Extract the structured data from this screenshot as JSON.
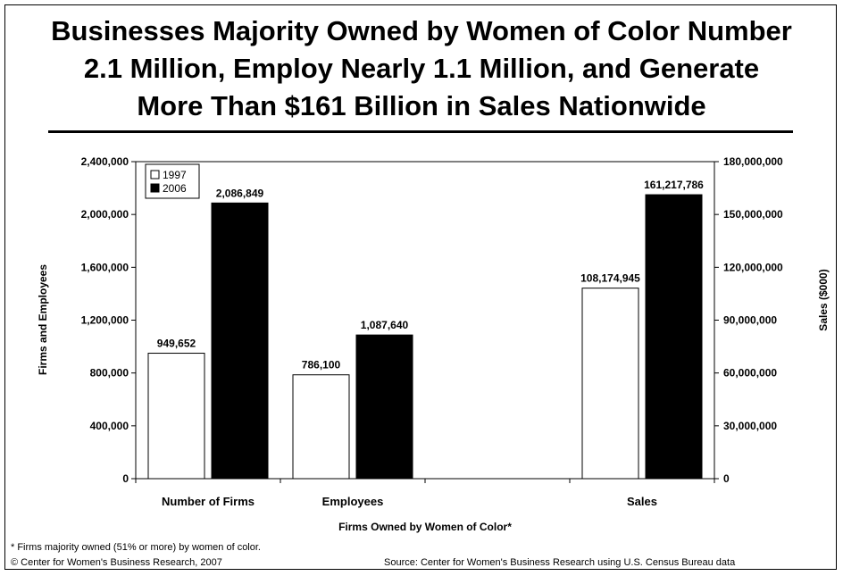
{
  "title_lines": [
    "Businesses Majority Owned by Women of Color Number",
    "2.1 Million, Employ Nearly 1.1 Million, and Generate",
    "More Than $161 Billion in Sales Nationwide"
  ],
  "footnote": "* Firms majority owned (51% or more) by women of color.",
  "copyright": "© Center for Women's Business Research, 2007",
  "source": "Source: Center for Women's Business Research using U.S. Census Bureau data",
  "chart_data": {
    "type": "bar",
    "categories": [
      "Number of Firms",
      "Employees",
      "",
      "Sales"
    ],
    "series": [
      {
        "name": "1997",
        "color": "#ffffff",
        "values": [
          949652,
          786100,
          null,
          108174945
        ],
        "labels": [
          "949,652",
          "786,100",
          "",
          "108,174,945"
        ]
      },
      {
        "name": "2006",
        "color": "#000000",
        "values": [
          2086849,
          1087640,
          null,
          161217786
        ],
        "labels": [
          "2,086,849",
          "1,087,640",
          "",
          "161,217,786"
        ]
      }
    ],
    "value_axis": [
      "left",
      "left",
      "left",
      "right"
    ],
    "xlabel": "Firms Owned by Women of Color*",
    "ylabel": "Firms and Employees",
    "y2label": "Sales ($000)",
    "ylim": [
      0,
      2400000
    ],
    "y2lim": [
      0,
      180000000
    ],
    "yticks": [
      "0",
      "400,000",
      "800,000",
      "1,200,000",
      "1,600,000",
      "2,000,000",
      "2,400,000"
    ],
    "y2ticks": [
      "0",
      "30,000,000",
      "60,000,000",
      "90,000,000",
      "120,000,000",
      "150,000,000",
      "180,000,000"
    ],
    "legend": "top-left",
    "grid": false
  }
}
